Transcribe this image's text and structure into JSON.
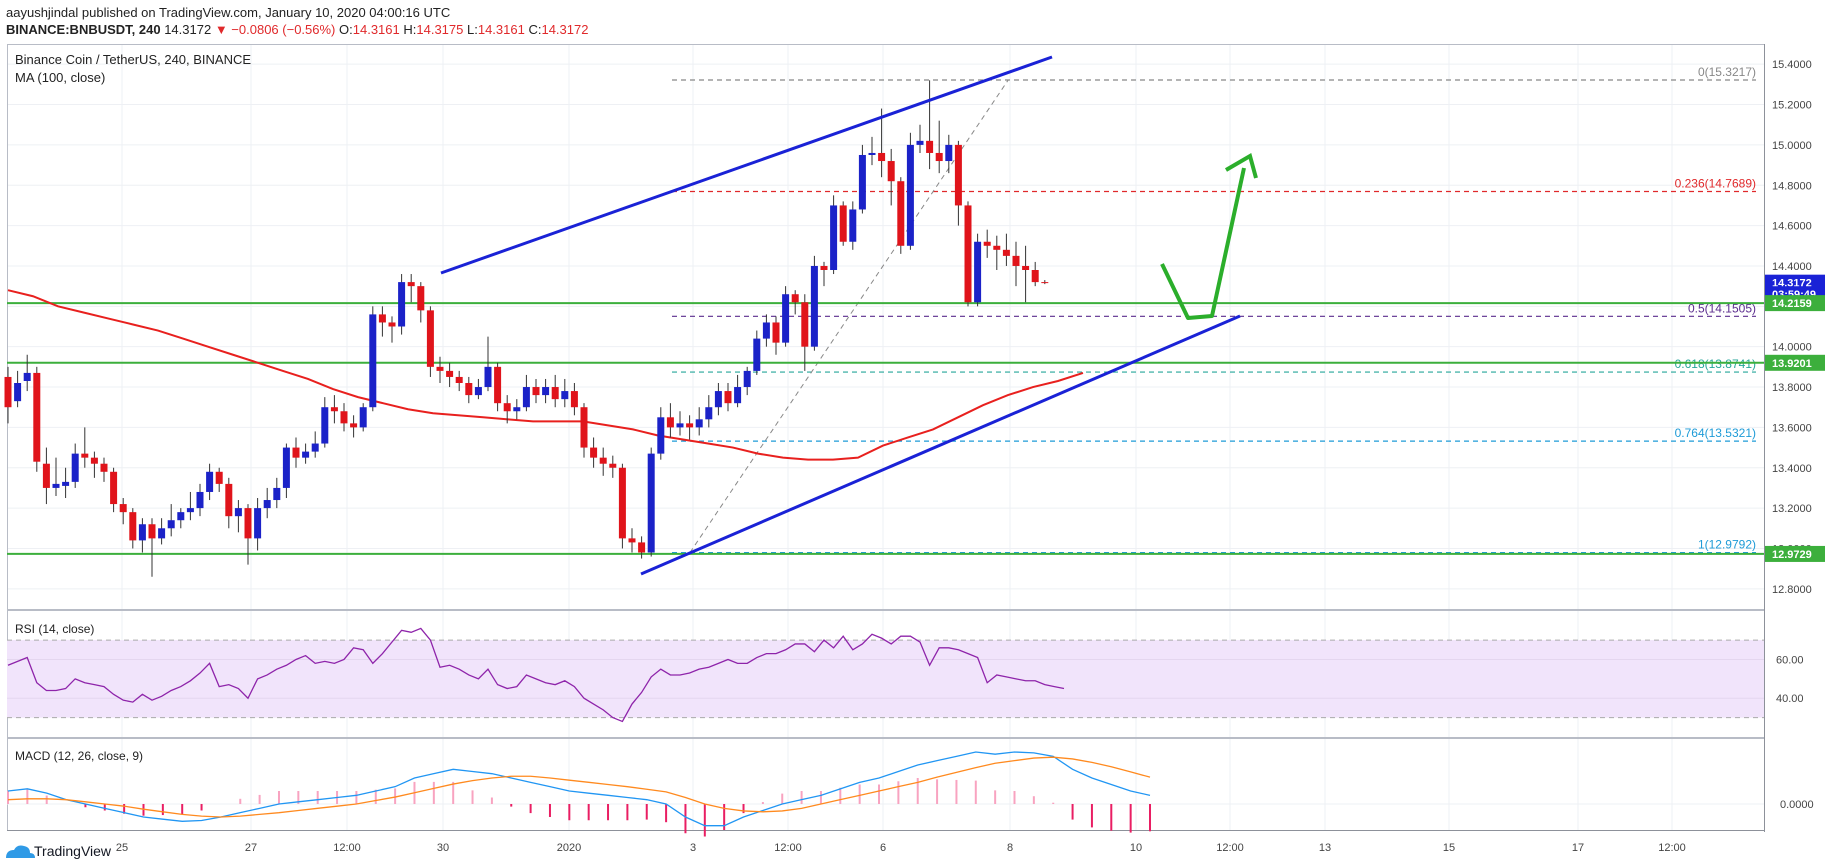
{
  "header": {
    "published": "aayushjindal published on TradingView.com, January 10, 2020 04:00:16 UTC",
    "symbol": "BINANCE:BNBUSDT, 240",
    "last": "14.3172",
    "change": "▼ −0.0806 (−0.56%)",
    "o_label": "O:",
    "o": "14.3161",
    "h_label": "H:",
    "h": "14.3175",
    "l_label": "L:",
    "l": "14.3161",
    "c_label": "C:",
    "c": "14.3172"
  },
  "footer": {
    "brand": "TradingView"
  },
  "colors": {
    "up": "#1b22c8",
    "down": "#e0141b",
    "ma": "#e8201e",
    "trend": "#1a22d6",
    "support": "#3caf3c",
    "arrow": "#2bae2b",
    "rsi": "#8e24aa",
    "macd": "#2196f3",
    "signal": "#ff8a1f",
    "hist": "#e91e63"
  },
  "chart_data": {
    "type": "candlestick",
    "title": "Binance Coin / TetherUS, 240, BINANCE",
    "indicator": "MA (100, close)",
    "ylim": [
      12.7,
      15.5
    ],
    "y_ticks": [
      "12.8000",
      "13.0000",
      "13.2000",
      "13.4000",
      "13.6000",
      "13.8000",
      "14.0000",
      "14.2000",
      "14.4000",
      "14.6000",
      "14.8000",
      "15.0000",
      "15.2000",
      "15.4000"
    ],
    "x_ticks": [
      "25",
      "27",
      "12:00",
      "30",
      "2020",
      "3",
      "12:00",
      "6",
      "8",
      "10",
      "12:00",
      "13",
      "15",
      "17",
      "12:00"
    ],
    "price_labels": [
      {
        "text": "14.3172",
        "value": 14.3172,
        "kind": "last"
      },
      {
        "text": "03:59:49",
        "value": 14.26,
        "kind": "timer"
      },
      {
        "text": "14.2159",
        "value": 14.2159,
        "kind": "support"
      },
      {
        "text": "13.9201",
        "value": 13.9201,
        "kind": "support"
      },
      {
        "text": "12.9729",
        "value": 12.9729,
        "kind": "support"
      }
    ],
    "support_levels": [
      14.2159,
      13.9201,
      12.9729
    ],
    "fibonacci": [
      {
        "label": "0(15.3217)",
        "value": 15.3217
      },
      {
        "label": "0.236(14.7689)",
        "value": 14.7689
      },
      {
        "label": "0.5(14.1505)",
        "value": 14.1505
      },
      {
        "label": "0.618(13.8741)",
        "value": 13.8741
      },
      {
        "label": "0.764(13.5321)",
        "value": 13.5321
      },
      {
        "label": "1(12.9792)",
        "value": 12.9792
      }
    ],
    "candles": [
      [
        13.85,
        13.7,
        13.9,
        13.62
      ],
      [
        13.73,
        13.82,
        13.88,
        13.7
      ],
      [
        13.83,
        13.87,
        13.96,
        13.78
      ],
      [
        13.87,
        13.43,
        13.9,
        13.38
      ],
      [
        13.42,
        13.3,
        13.5,
        13.22
      ],
      [
        13.3,
        13.32,
        13.45,
        13.26
      ],
      [
        13.31,
        13.33,
        13.4,
        13.25
      ],
      [
        13.33,
        13.47,
        13.52,
        13.3
      ],
      [
        13.47,
        13.45,
        13.6,
        13.4
      ],
      [
        13.45,
        13.42,
        13.48,
        13.35
      ],
      [
        13.42,
        13.38,
        13.45,
        13.33
      ],
      [
        13.38,
        13.22,
        13.4,
        13.18
      ],
      [
        13.22,
        13.18,
        13.25,
        13.12
      ],
      [
        13.18,
        13.04,
        13.2,
        13.0
      ],
      [
        13.04,
        13.12,
        13.15,
        12.98
      ],
      [
        13.12,
        13.05,
        13.15,
        12.86
      ],
      [
        13.05,
        13.1,
        13.15,
        13.02
      ],
      [
        13.1,
        13.14,
        13.22,
        13.06
      ],
      [
        13.14,
        13.18,
        13.2,
        13.1
      ],
      [
        13.18,
        13.2,
        13.28,
        13.14
      ],
      [
        13.2,
        13.28,
        13.32,
        13.16
      ],
      [
        13.28,
        13.38,
        13.42,
        13.24
      ],
      [
        13.38,
        13.32,
        13.4,
        13.28
      ],
      [
        13.32,
        13.16,
        13.35,
        13.1
      ],
      [
        13.16,
        13.2,
        13.24,
        13.08
      ],
      [
        13.2,
        13.05,
        13.22,
        12.92
      ],
      [
        13.05,
        13.2,
        13.25,
        12.99
      ],
      [
        13.2,
        13.24,
        13.3,
        13.15
      ],
      [
        13.24,
        13.3,
        13.35,
        13.2
      ],
      [
        13.3,
        13.5,
        13.52,
        13.25
      ],
      [
        13.5,
        13.45,
        13.55,
        13.4
      ],
      [
        13.45,
        13.48,
        13.52,
        13.42
      ],
      [
        13.48,
        13.52,
        13.58,
        13.45
      ],
      [
        13.52,
        13.7,
        13.75,
        13.5
      ],
      [
        13.7,
        13.68,
        13.76,
        13.62
      ],
      [
        13.68,
        13.62,
        13.72,
        13.58
      ],
      [
        13.62,
        13.6,
        13.66,
        13.55
      ],
      [
        13.6,
        13.7,
        13.72,
        13.58
      ],
      [
        13.7,
        14.16,
        14.2,
        13.68
      ],
      [
        14.16,
        14.12,
        14.2,
        14.05
      ],
      [
        14.12,
        14.1,
        14.15,
        14.02
      ],
      [
        14.1,
        14.32,
        14.36,
        14.06
      ],
      [
        14.32,
        14.3,
        14.36,
        14.22
      ],
      [
        14.3,
        14.18,
        14.32,
        14.12
      ],
      [
        14.18,
        13.9,
        14.2,
        13.85
      ],
      [
        13.9,
        13.88,
        13.95,
        13.82
      ],
      [
        13.88,
        13.85,
        13.92,
        13.8
      ],
      [
        13.85,
        13.82,
        13.88,
        13.78
      ],
      [
        13.82,
        13.76,
        13.85,
        13.72
      ],
      [
        13.76,
        13.8,
        13.84,
        13.74
      ],
      [
        13.8,
        13.9,
        14.05,
        13.78
      ],
      [
        13.9,
        13.72,
        13.92,
        13.68
      ],
      [
        13.72,
        13.68,
        13.76,
        13.62
      ],
      [
        13.68,
        13.7,
        13.74,
        13.64
      ],
      [
        13.7,
        13.8,
        13.86,
        13.68
      ],
      [
        13.8,
        13.76,
        13.84,
        13.72
      ],
      [
        13.76,
        13.8,
        13.84,
        13.72
      ],
      [
        13.8,
        13.74,
        13.86,
        13.7
      ],
      [
        13.74,
        13.78,
        13.84,
        13.7
      ],
      [
        13.78,
        13.7,
        13.82,
        13.66
      ],
      [
        13.7,
        13.5,
        13.72,
        13.45
      ],
      [
        13.5,
        13.45,
        13.55,
        13.4
      ],
      [
        13.45,
        13.42,
        13.5,
        13.36
      ],
      [
        13.42,
        13.4,
        13.46,
        13.35
      ],
      [
        13.4,
        13.05,
        13.42,
        13.0
      ],
      [
        13.05,
        13.03,
        13.1,
        12.98
      ],
      [
        13.03,
        12.98,
        13.06,
        12.95
      ],
      [
        12.98,
        13.47,
        13.5,
        12.96
      ],
      [
        13.47,
        13.65,
        13.7,
        13.44
      ],
      [
        13.65,
        13.6,
        13.72,
        13.55
      ],
      [
        13.6,
        13.62,
        13.68,
        13.56
      ],
      [
        13.62,
        13.6,
        13.66,
        13.54
      ],
      [
        13.6,
        13.64,
        13.7,
        13.56
      ],
      [
        13.64,
        13.7,
        13.76,
        13.6
      ],
      [
        13.7,
        13.78,
        13.82,
        13.66
      ],
      [
        13.78,
        13.72,
        13.82,
        13.68
      ],
      [
        13.72,
        13.8,
        13.86,
        13.7
      ],
      [
        13.8,
        13.88,
        13.9,
        13.76
      ],
      [
        13.88,
        14.04,
        14.08,
        13.86
      ],
      [
        14.04,
        14.12,
        14.16,
        14.0
      ],
      [
        14.12,
        14.02,
        14.15,
        13.96
      ],
      [
        14.02,
        14.26,
        14.3,
        14.0
      ],
      [
        14.26,
        14.22,
        14.28,
        14.16
      ],
      [
        14.22,
        14.0,
        14.26,
        13.88
      ],
      [
        14.0,
        14.4,
        14.45,
        13.98
      ],
      [
        14.4,
        14.38,
        14.42,
        14.3
      ],
      [
        14.38,
        14.7,
        14.75,
        14.36
      ],
      [
        14.7,
        14.52,
        14.72,
        14.5
      ],
      [
        14.52,
        14.68,
        14.72,
        14.48
      ],
      [
        14.68,
        14.95,
        15.0,
        14.66
      ],
      [
        14.95,
        14.96,
        15.04,
        14.9
      ],
      [
        14.96,
        14.92,
        15.18,
        14.84
      ],
      [
        14.92,
        14.82,
        14.98,
        14.7
      ],
      [
        14.82,
        14.5,
        14.84,
        14.46
      ],
      [
        14.5,
        15.0,
        15.06,
        14.48
      ],
      [
        15.0,
        15.02,
        15.1,
        14.96
      ],
      [
        15.02,
        14.96,
        15.32,
        14.88
      ],
      [
        14.96,
        14.92,
        15.12,
        14.86
      ],
      [
        14.92,
        15.0,
        15.05,
        14.86
      ],
      [
        15.0,
        14.7,
        15.02,
        14.6
      ],
      [
        14.7,
        14.22,
        14.72,
        14.2
      ],
      [
        14.22,
        14.52,
        14.56,
        14.2
      ],
      [
        14.52,
        14.5,
        14.58,
        14.44
      ],
      [
        14.5,
        14.48,
        14.55,
        14.38
      ],
      [
        14.48,
        14.45,
        14.56,
        14.4
      ],
      [
        14.45,
        14.4,
        14.52,
        14.3
      ],
      [
        14.4,
        14.38,
        14.5,
        14.22
      ],
      [
        14.38,
        14.32,
        14.42,
        14.3
      ],
      [
        14.32,
        14.3172,
        14.33,
        14.31
      ]
    ],
    "ma": [
      14.28,
      14.25,
      14.2,
      14.17,
      14.14,
      14.11,
      14.08,
      14.04,
      14.0,
      13.96,
      13.92,
      13.88,
      13.84,
      13.79,
      13.75,
      13.72,
      13.69,
      13.67,
      13.66,
      13.65,
      13.64,
      13.63,
      13.63,
      13.63,
      13.61,
      13.59,
      13.56,
      13.54,
      13.52,
      13.5,
      13.47,
      13.45,
      13.44,
      13.44,
      13.45,
      13.51,
      13.55,
      13.59,
      13.65,
      13.71,
      13.76,
      13.8,
      13.83,
      13.87
    ],
    "rsi": {
      "label": "RSI (14, close)",
      "ylim": [
        20,
        85
      ],
      "ticks": [
        "40.00",
        "60.00"
      ],
      "upper": 70,
      "lower": 30,
      "values": [
        57,
        59,
        61,
        48,
        44,
        44,
        45,
        50,
        48,
        47,
        46,
        42,
        39,
        38,
        42,
        39,
        41,
        44,
        46,
        49,
        53,
        58,
        46,
        47,
        45,
        40,
        50,
        52,
        55,
        57,
        60,
        62,
        58,
        59,
        58,
        60,
        66,
        65,
        58,
        63,
        69,
        75,
        74,
        76,
        70,
        56,
        57,
        55,
        52,
        50,
        55,
        47,
        45,
        46,
        52,
        50,
        48,
        47,
        49,
        46,
        40,
        37,
        34,
        30,
        28,
        37,
        43,
        51,
        55,
        52,
        52,
        53,
        55,
        56,
        58,
        60,
        58,
        58,
        61,
        63,
        63,
        65,
        68,
        68,
        64,
        70,
        66,
        72,
        65,
        68,
        73,
        71,
        68,
        72,
        72,
        69,
        57,
        66,
        66,
        65,
        63,
        61,
        48,
        52,
        51,
        50,
        49,
        49,
        47,
        46,
        45
      ]
    },
    "macd": {
      "label": "MACD (12, 26, close, 9)",
      "ylim": [
        -0.06,
        0.15
      ],
      "ticks": [
        "0.0000"
      ],
      "macd_values": [
        0.03,
        0.035,
        0.025,
        0.01,
        0.0,
        -0.01,
        -0.02,
        -0.03,
        -0.035,
        -0.04,
        -0.038,
        -0.03,
        -0.02,
        -0.01,
        0.0,
        0.005,
        0.01,
        0.015,
        0.02,
        0.03,
        0.04,
        0.06,
        0.07,
        0.08,
        0.075,
        0.07,
        0.06,
        0.05,
        0.04,
        0.03,
        0.025,
        0.02,
        0.015,
        0.01,
        0.0,
        -0.03,
        -0.05,
        -0.05,
        -0.03,
        -0.015,
        0.0,
        0.01,
        0.02,
        0.035,
        0.05,
        0.06,
        0.075,
        0.09,
        0.1,
        0.11,
        0.12,
        0.115,
        0.12,
        0.118,
        0.11,
        0.08,
        0.06,
        0.045,
        0.03,
        0.02
      ],
      "signal_values": [
        0.01,
        0.012,
        0.012,
        0.01,
        0.005,
        0.0,
        -0.005,
        -0.012,
        -0.018,
        -0.024,
        -0.028,
        -0.03,
        -0.028,
        -0.024,
        -0.02,
        -0.015,
        -0.01,
        -0.005,
        0.0,
        0.008,
        0.016,
        0.026,
        0.036,
        0.046,
        0.054,
        0.06,
        0.064,
        0.064,
        0.06,
        0.055,
        0.05,
        0.045,
        0.04,
        0.034,
        0.028,
        0.015,
        0.0,
        -0.01,
        -0.016,
        -0.018,
        -0.016,
        -0.01,
        0.0,
        0.01,
        0.02,
        0.03,
        0.04,
        0.05,
        0.062,
        0.073,
        0.084,
        0.094,
        0.1,
        0.106,
        0.108,
        0.104,
        0.096,
        0.086,
        0.074,
        0.062
      ]
    }
  }
}
